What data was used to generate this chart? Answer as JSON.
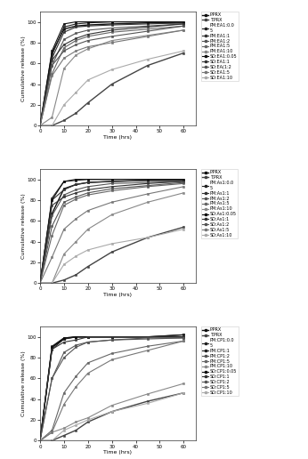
{
  "time": [
    0,
    5,
    10,
    15,
    20,
    30,
    45,
    60
  ],
  "charts": [
    {
      "ylabel": "Cumulative release (%)",
      "xlabel": "Time (hrs)",
      "ylim": [
        0,
        110
      ],
      "xlim": [
        0,
        65
      ],
      "series": [
        {
          "label": "P.PRX",
          "values": [
            0,
            70,
            93,
            96,
            97,
            98,
            99,
            99
          ],
          "marker": "s",
          "ls": "-",
          "color": "#111111",
          "lw": 1.0
        },
        {
          "label": "T.PRX",
          "values": [
            0,
            0,
            5,
            12,
            22,
            40,
            58,
            70
          ],
          "marker": "s",
          "ls": "-",
          "color": "#444444",
          "lw": 1.0
        },
        {
          "label": "PM:EA1:0.0\n5",
          "values": [
            0,
            68,
            95,
            98,
            99,
            100,
            100,
            100
          ],
          "marker": "s",
          "ls": "-",
          "color": "#222222",
          "lw": 0.8
        },
        {
          "label": "PM:EA1:1",
          "values": [
            0,
            65,
            90,
            95,
            96,
            97,
            98,
            99
          ],
          "marker": "s",
          "ls": "-",
          "color": "#333333",
          "lw": 0.8
        },
        {
          "label": "PM:EA1:2",
          "values": [
            0,
            58,
            83,
            89,
            92,
            94,
            96,
            98
          ],
          "marker": "s",
          "ls": "-",
          "color": "#555555",
          "lw": 0.8
        },
        {
          "label": "PM:EA1:5",
          "values": [
            0,
            50,
            75,
            82,
            86,
            90,
            93,
            96
          ],
          "marker": "s",
          "ls": "-",
          "color": "#666666",
          "lw": 0.8
        },
        {
          "label": "PM:EA1:10",
          "values": [
            0,
            8,
            55,
            68,
            74,
            82,
            87,
            92
          ],
          "marker": "s",
          "ls": "-",
          "color": "#888888",
          "lw": 0.8
        },
        {
          "label": "SD:EA1:0.05",
          "values": [
            0,
            72,
            98,
            100,
            100,
            100,
            100,
            100
          ],
          "marker": "s",
          "ls": "-",
          "color": "#111111",
          "lw": 0.8
        },
        {
          "label": "SD:EA1:1",
          "values": [
            0,
            63,
            78,
            84,
            88,
            92,
            95,
            98
          ],
          "marker": "s",
          "ls": "-",
          "color": "#333333",
          "lw": 0.8
        },
        {
          "label": "SD:EA(1:2",
          "values": [
            0,
            58,
            72,
            78,
            82,
            86,
            91,
            96
          ],
          "marker": "s",
          "ls": "-",
          "color": "#555555",
          "lw": 0.8
        },
        {
          "label": "SD:EA1:5",
          "values": [
            0,
            48,
            65,
            72,
            76,
            80,
            86,
            92
          ],
          "marker": "s",
          "ls": "-",
          "color": "#777777",
          "lw": 0.8
        },
        {
          "label": "SD:EA1:10",
          "values": [
            0,
            0,
            20,
            32,
            44,
            54,
            64,
            72
          ],
          "marker": "s",
          "ls": "-",
          "color": "#aaaaaa",
          "lw": 0.8
        }
      ]
    },
    {
      "ylabel": "Cumulative release (%)",
      "xlabel": "Time (hrs)",
      "ylim": [
        0,
        110
      ],
      "xlim": [
        0,
        65
      ],
      "series": [
        {
          "label": "P.PRX",
          "values": [
            0,
            67,
            91,
            95,
            97,
            98,
            99,
            99
          ],
          "marker": "s",
          "ls": "-",
          "color": "#111111",
          "lw": 1.0
        },
        {
          "label": "T.PRX",
          "values": [
            0,
            0,
            3,
            8,
            16,
            30,
            44,
            54
          ],
          "marker": "s",
          "ls": "-",
          "color": "#444444",
          "lw": 1.0
        },
        {
          "label": "PM:As1:0.0\n5",
          "values": [
            0,
            82,
            98,
            99,
            100,
            100,
            100,
            100
          ],
          "marker": "s",
          "ls": "-",
          "color": "#222222",
          "lw": 0.8
        },
        {
          "label": "PM:As1:1",
          "values": [
            0,
            80,
            90,
            95,
            97,
            98,
            99,
            99
          ],
          "marker": "s",
          "ls": "-",
          "color": "#333333",
          "lw": 0.8
        },
        {
          "label": "PM:As1:2",
          "values": [
            0,
            65,
            85,
            90,
            93,
            96,
            97,
            98
          ],
          "marker": "s",
          "ls": "-",
          "color": "#555555",
          "lw": 0.8
        },
        {
          "label": "PM:As1:5",
          "values": [
            0,
            46,
            75,
            81,
            85,
            89,
            93,
            96
          ],
          "marker": "s",
          "ls": "-",
          "color": "#666666",
          "lw": 0.8
        },
        {
          "label": "PM:As1:10",
          "values": [
            0,
            0,
            28,
            40,
            52,
            66,
            78,
            87
          ],
          "marker": "s",
          "ls": "-",
          "color": "#888888",
          "lw": 0.8
        },
        {
          "label": "SD:As1:0.05",
          "values": [
            0,
            80,
            98,
            100,
            100,
            100,
            100,
            100
          ],
          "marker": "s",
          "ls": "-",
          "color": "#111111",
          "lw": 0.8
        },
        {
          "label": "SD:As1:1",
          "values": [
            0,
            75,
            83,
            87,
            90,
            93,
            96,
            98
          ],
          "marker": "s",
          "ls": "-",
          "color": "#333333",
          "lw": 0.8
        },
        {
          "label": "SD:As1:2",
          "values": [
            0,
            55,
            78,
            83,
            87,
            91,
            94,
            97
          ],
          "marker": "s",
          "ls": "-",
          "color": "#555555",
          "lw": 0.8
        },
        {
          "label": "SD:As1:5",
          "values": [
            0,
            25,
            52,
            62,
            70,
            78,
            86,
            93
          ],
          "marker": "s",
          "ls": "-",
          "color": "#777777",
          "lw": 0.8
        },
        {
          "label": "SD:As1:10",
          "values": [
            0,
            0,
            18,
            26,
            32,
            38,
            44,
            52
          ],
          "marker": "s",
          "ls": "-",
          "color": "#aaaaaa",
          "lw": 0.8
        }
      ]
    },
    {
      "ylabel": "Cumulative release (%)",
      "xlabel": "Time (hrs)",
      "ylim": [
        0,
        110
      ],
      "xlim": [
        0,
        65
      ],
      "series": [
        {
          "label": "P.PRX",
          "values": [
            0,
            90,
            98,
            100,
            100,
            100,
            100,
            102
          ],
          "marker": "s",
          "ls": "-",
          "color": "#111111",
          "lw": 1.0
        },
        {
          "label": "T.PRX",
          "values": [
            0,
            0,
            5,
            10,
            18,
            28,
            38,
            46
          ],
          "marker": "s",
          "ls": "-",
          "color": "#444444",
          "lw": 1.0
        },
        {
          "label": "PM:CP1:0.0\n5",
          "values": [
            0,
            91,
            99,
            100,
            100,
            100,
            100,
            102
          ],
          "marker": "s",
          "ls": "-",
          "color": "#222222",
          "lw": 0.8
        },
        {
          "label": "PM:CP1:1",
          "values": [
            0,
            88,
            98,
            100,
            100,
            100,
            100,
            100
          ],
          "marker": "s",
          "ls": "-",
          "color": "#222222",
          "lw": 0.8
        },
        {
          "label": "PM:CP1:2",
          "values": [
            0,
            60,
            85,
            92,
            95,
            97,
            98,
            99
          ],
          "marker": "s",
          "ls": "-",
          "color": "#555555",
          "lw": 0.8
        },
        {
          "label": "PM:CP1:5",
          "values": [
            0,
            10,
            46,
            62,
            75,
            84,
            91,
            96
          ],
          "marker": "s",
          "ls": "-",
          "color": "#666666",
          "lw": 0.8
        },
        {
          "label": "PM:CP1:10",
          "values": [
            0,
            8,
            12,
            18,
            22,
            34,
            45,
            55
          ],
          "marker": "s",
          "ls": "-",
          "color": "#888888",
          "lw": 0.8
        },
        {
          "label": "SD:CP1:0.05",
          "values": [
            0,
            90,
            99,
            100,
            100,
            100,
            100,
            100
          ],
          "marker": "s",
          "ls": "-",
          "color": "#111111",
          "lw": 0.8
        },
        {
          "label": "SD:CP1:1",
          "values": [
            0,
            88,
            95,
            97,
            100,
            100,
            100,
            100
          ],
          "marker": "s",
          "ls": "-",
          "color": "#333333",
          "lw": 0.8
        },
        {
          "label": "SD:CP1:2",
          "values": [
            0,
            60,
            80,
            90,
            95,
            97,
            99,
            99
          ],
          "marker": "s",
          "ls": "-",
          "color": "#555555",
          "lw": 0.8
        },
        {
          "label": "SD:CP1:5",
          "values": [
            0,
            8,
            35,
            52,
            65,
            78,
            87,
            96
          ],
          "marker": "s",
          "ls": "-",
          "color": "#777777",
          "lw": 0.8
        },
        {
          "label": "SD:CP1:10",
          "values": [
            0,
            0,
            10,
            15,
            20,
            28,
            36,
            46
          ],
          "marker": "s",
          "ls": "-",
          "color": "#aaaaaa",
          "lw": 0.8
        }
      ]
    }
  ],
  "bg_color": "#ffffff",
  "plot_bg": "#ffffff",
  "border_color": "#bbbbbb"
}
